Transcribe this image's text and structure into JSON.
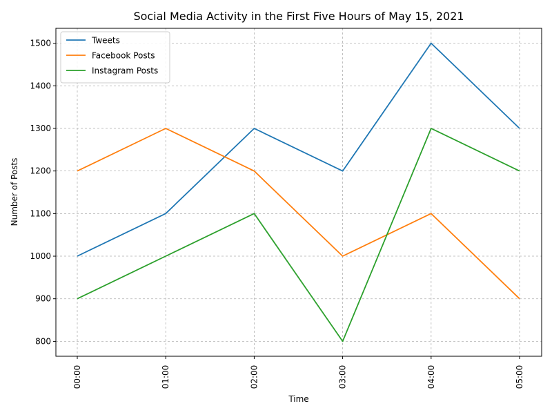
{
  "chart_data": {
    "type": "line",
    "title": "Social Media Activity in the First Five Hours of May 15, 2021",
    "xlabel": "Time",
    "ylabel": "Number of Posts",
    "categories": [
      "00:00",
      "01:00",
      "02:00",
      "03:00",
      "04:00",
      "05:00"
    ],
    "yticks": [
      800,
      900,
      1000,
      1100,
      1200,
      1300,
      1400,
      1500
    ],
    "ylim": [
      765,
      1535
    ],
    "grid": true,
    "legend_position": "top-left",
    "series": [
      {
        "name": "Tweets",
        "color": "#1f77b4",
        "values": [
          1000,
          1100,
          1300,
          1200,
          1500,
          1300
        ]
      },
      {
        "name": "Facebook Posts",
        "color": "#ff7f0e",
        "values": [
          1200,
          1300,
          1200,
          1000,
          1100,
          900
        ]
      },
      {
        "name": "Instagram Posts",
        "color": "#2ca02c",
        "values": [
          900,
          1000,
          1100,
          800,
          1300,
          1200
        ]
      }
    ]
  }
}
